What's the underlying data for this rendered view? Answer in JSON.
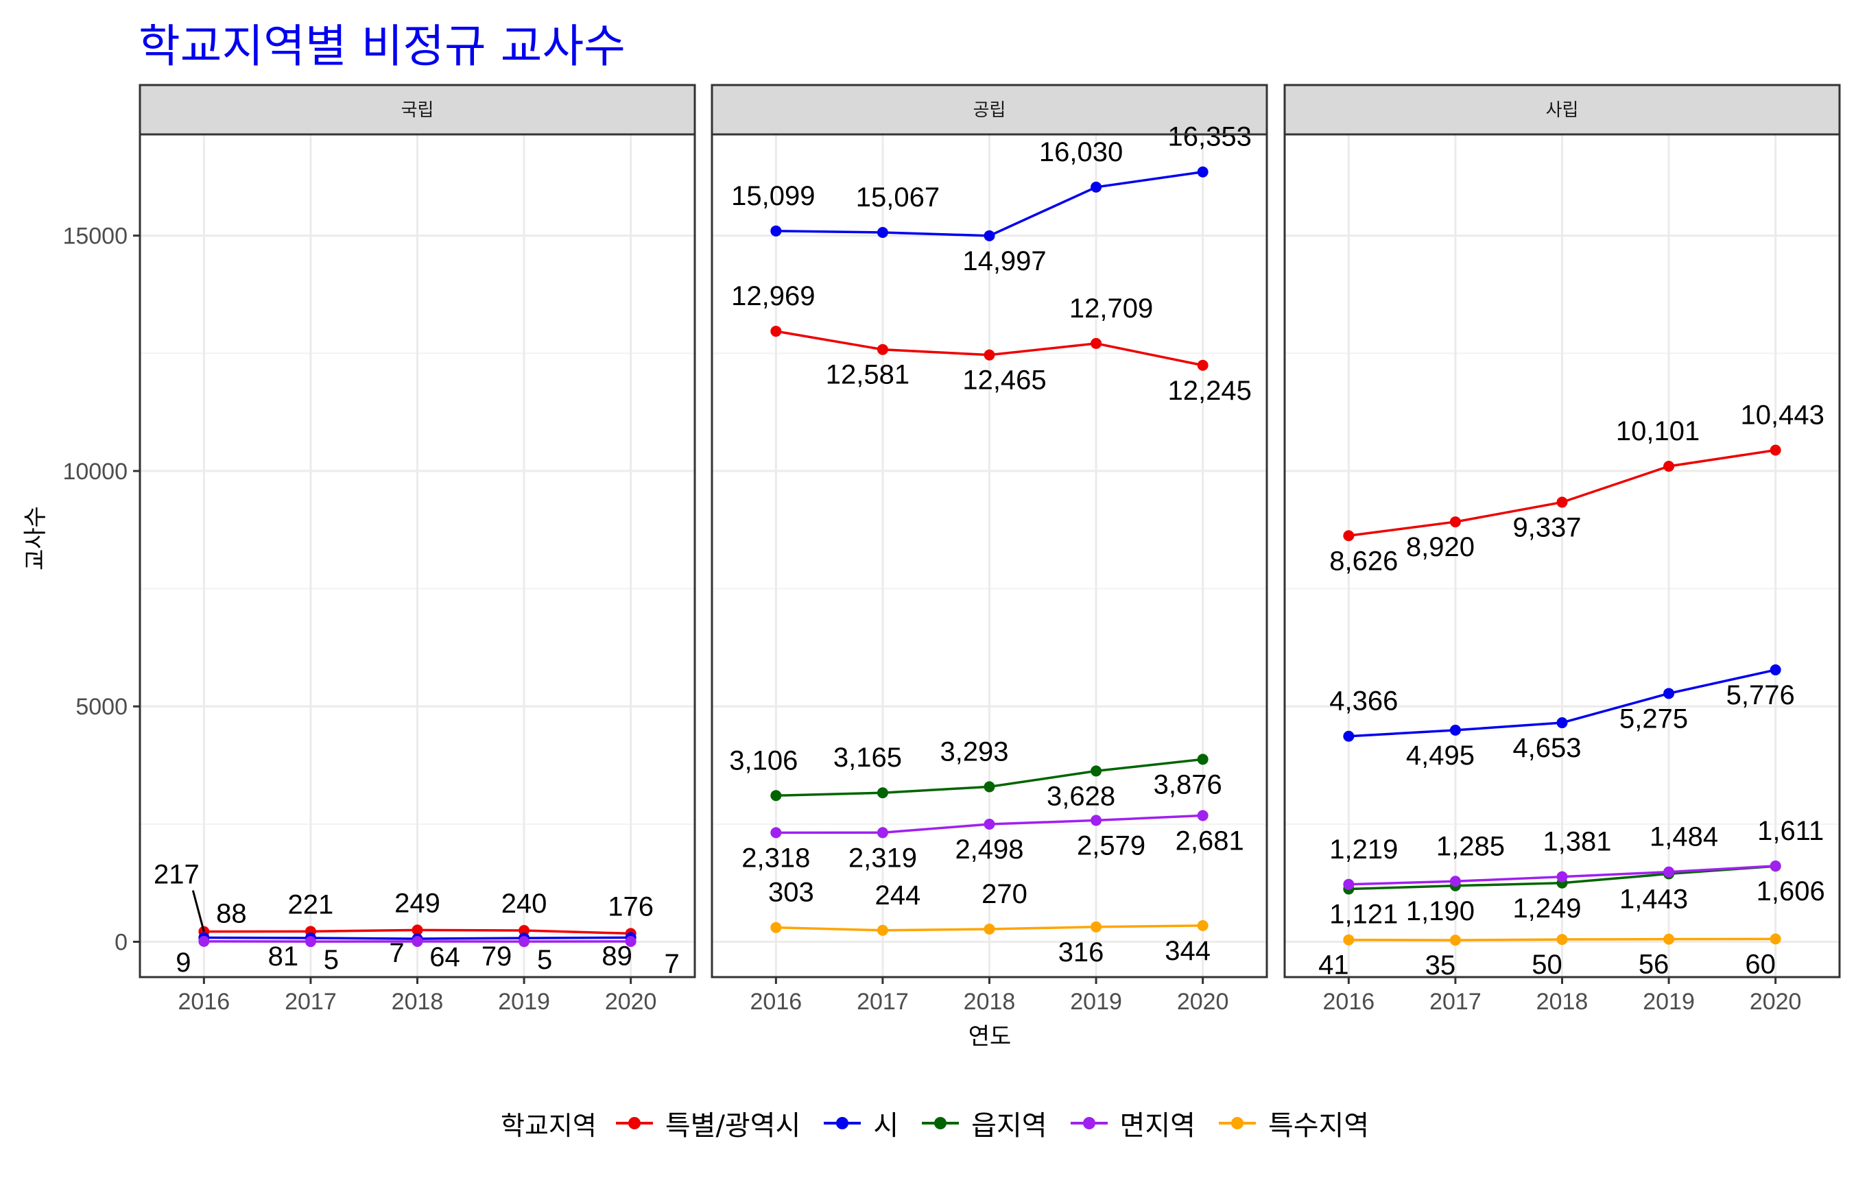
{
  "title": "학교지역별 비정규 교사수",
  "chart_data": {
    "type": "line",
    "title": "학교지역별 비정규 교사수",
    "xlabel": "연도",
    "ylabel": "교사수",
    "x": [
      2016,
      2017,
      2018,
      2019,
      2020
    ],
    "x_tick_labels": [
      "2016",
      "2017",
      "2018",
      "2019",
      "2020"
    ],
    "y_ticks": [
      0,
      5000,
      10000,
      15000
    ],
    "y_tick_labels": [
      "0",
      "5000",
      "10000",
      "15000"
    ],
    "ylim": [
      -750,
      17150
    ],
    "grid": true,
    "legend": {
      "title": "학교지역",
      "position": "bottom",
      "entries": [
        "특별/광역시",
        "시",
        "읍지역",
        "면지역",
        "특수지역"
      ]
    },
    "series_colors": {
      "특별/광역시": "#ee0000",
      "시": "#0000ee",
      "읍지역": "#006400",
      "면지역": "#a020f0",
      "특수지역": "#ffa500"
    },
    "panels": [
      {
        "name": "국립",
        "series": [
          {
            "name": "특별/광역시",
            "values": [
              217,
              221,
              249,
              240,
              176
            ],
            "labels": [
              "217",
              "221",
              "249",
              "240",
              "176"
            ]
          },
          {
            "name": "시",
            "values": [
              88,
              81,
              64,
              79,
              89
            ],
            "labels": [
              "88",
              "81",
              "64",
              "79",
              "89"
            ]
          },
          {
            "name": "읍지역",
            "values": [
              null,
              null,
              null,
              null,
              null
            ],
            "labels": [
              "",
              "",
              "",
              "",
              ""
            ]
          },
          {
            "name": "면지역",
            "values": [
              9,
              5,
              7,
              5,
              7
            ],
            "labels": [
              "9",
              "5",
              "7",
              "5",
              "7"
            ]
          },
          {
            "name": "특수지역",
            "values": [
              null,
              null,
              null,
              null,
              null
            ],
            "labels": [
              "",
              "",
              "",
              "",
              ""
            ]
          }
        ]
      },
      {
        "name": "공립",
        "series": [
          {
            "name": "특별/광역시",
            "values": [
              12969,
              12581,
              12465,
              12709,
              12245
            ],
            "labels": [
              "12,969",
              "12,581",
              "12,465",
              "12,709",
              "12,245"
            ]
          },
          {
            "name": "시",
            "values": [
              15099,
              15067,
              14997,
              16030,
              16353
            ],
            "labels": [
              "15,099",
              "15,067",
              "14,997",
              "16,030",
              "16,353"
            ]
          },
          {
            "name": "읍지역",
            "values": [
              3106,
              3165,
              3293,
              3628,
              3876
            ],
            "labels": [
              "3,106",
              "3,165",
              "3,293",
              "3,628",
              "3,876"
            ]
          },
          {
            "name": "면지역",
            "values": [
              2318,
              2319,
              2498,
              2579,
              2681
            ],
            "labels": [
              "2,318",
              "2,319",
              "2,498",
              "2,579",
              "2,681"
            ]
          },
          {
            "name": "특수지역",
            "values": [
              303,
              244,
              270,
              316,
              344
            ],
            "labels": [
              "303",
              "244",
              "270",
              "316",
              "344"
            ]
          }
        ]
      },
      {
        "name": "사립",
        "series": [
          {
            "name": "특별/광역시",
            "values": [
              8626,
              8920,
              9337,
              10101,
              10443
            ],
            "labels": [
              "8,626",
              "8,920",
              "9,337",
              "10,101",
              "10,443"
            ]
          },
          {
            "name": "시",
            "values": [
              4366,
              4495,
              4653,
              5275,
              5776
            ],
            "labels": [
              "4,366",
              "4,495",
              "4,653",
              "5,275",
              "5,776"
            ]
          },
          {
            "name": "읍지역",
            "values": [
              1121,
              1190,
              1249,
              1443,
              1606
            ],
            "labels": [
              "1,121",
              "1,190",
              "1,249",
              "1,443",
              "1,606"
            ]
          },
          {
            "name": "면지역",
            "values": [
              1219,
              1285,
              1381,
              1484,
              1611
            ],
            "labels": [
              "1,219",
              "1,285",
              "1,381",
              "1,484",
              "1,611"
            ]
          },
          {
            "name": "특수지역",
            "values": [
              41,
              35,
              50,
              56,
              60
            ],
            "labels": [
              "41",
              "35",
              "50",
              "56",
              "60"
            ]
          }
        ]
      }
    ]
  }
}
